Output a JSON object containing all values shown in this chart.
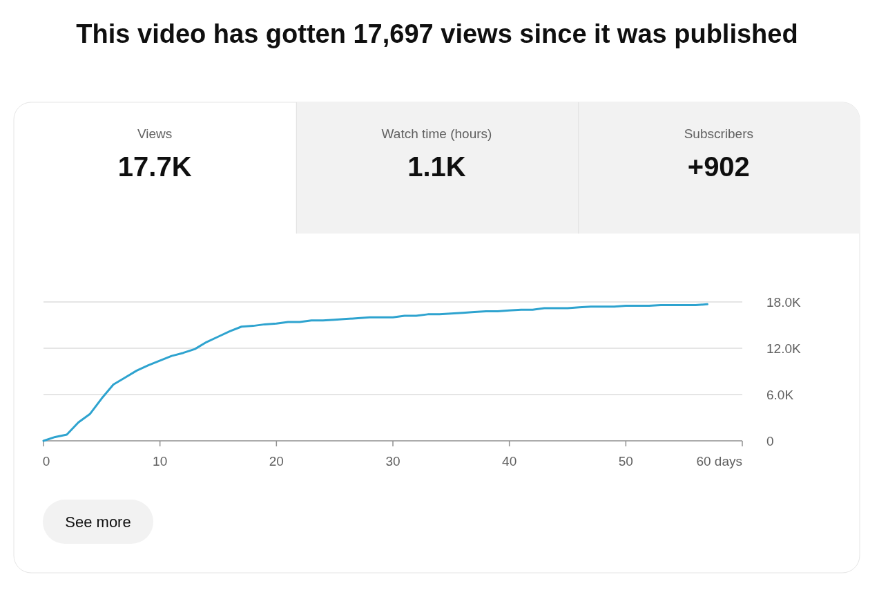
{
  "chart_data": {
    "type": "line",
    "title": "This video has gotten 17,697 views since it was published",
    "annotations": [
      "Views",
      "17.7K",
      "Watch time (hours)",
      "1.1K",
      "Subscribers",
      "+902",
      "See more"
    ],
    "x": [
      0,
      1,
      2,
      3,
      4,
      5,
      6,
      7,
      8,
      9,
      10,
      11,
      12,
      13,
      14,
      15,
      16,
      17,
      18,
      19,
      20,
      21,
      22,
      23,
      24,
      25,
      26,
      27,
      28,
      29,
      30,
      31,
      32,
      33,
      34,
      35,
      36,
      37,
      38,
      39,
      40,
      41,
      42,
      43,
      44,
      45,
      46,
      47,
      48,
      49,
      50,
      51,
      52,
      53,
      54,
      55,
      56,
      57
    ],
    "series": [
      {
        "color": "#2ea3cf",
        "values": [
          0,
          500,
          800,
          2400,
          3500,
          5500,
          7300,
          8200,
          9100,
          9800,
          10400,
          11000,
          11400,
          11900,
          12800,
          13500,
          14200,
          14800,
          14900,
          15100,
          15200,
          15400,
          15400,
          15600,
          15600,
          15700,
          15800,
          15900,
          16000,
          16000,
          16000,
          16200,
          16200,
          16400,
          16400,
          16500,
          16600,
          16700,
          16800,
          16800,
          16900,
          17000,
          17000,
          17200,
          17200,
          17200,
          17300,
          17400,
          17400,
          17400,
          17500,
          17500,
          17500,
          17600,
          17600,
          17600,
          17600,
          17700
        ]
      }
    ],
    "xlim": [
      0,
      60
    ],
    "xticks": [
      0,
      10,
      20,
      30,
      40,
      50,
      {
        "value": 60,
        "label": "60 days"
      }
    ],
    "ylim": [
      0,
      18000
    ],
    "yticks": [
      0,
      {
        "value": 6000,
        "label": "6.0K"
      },
      {
        "value": 12000,
        "label": "12.0K"
      },
      {
        "value": 18000,
        "label": "18.0K"
      }
    ],
    "grid": "y",
    "marker": "none",
    "line_style": "solid"
  }
}
